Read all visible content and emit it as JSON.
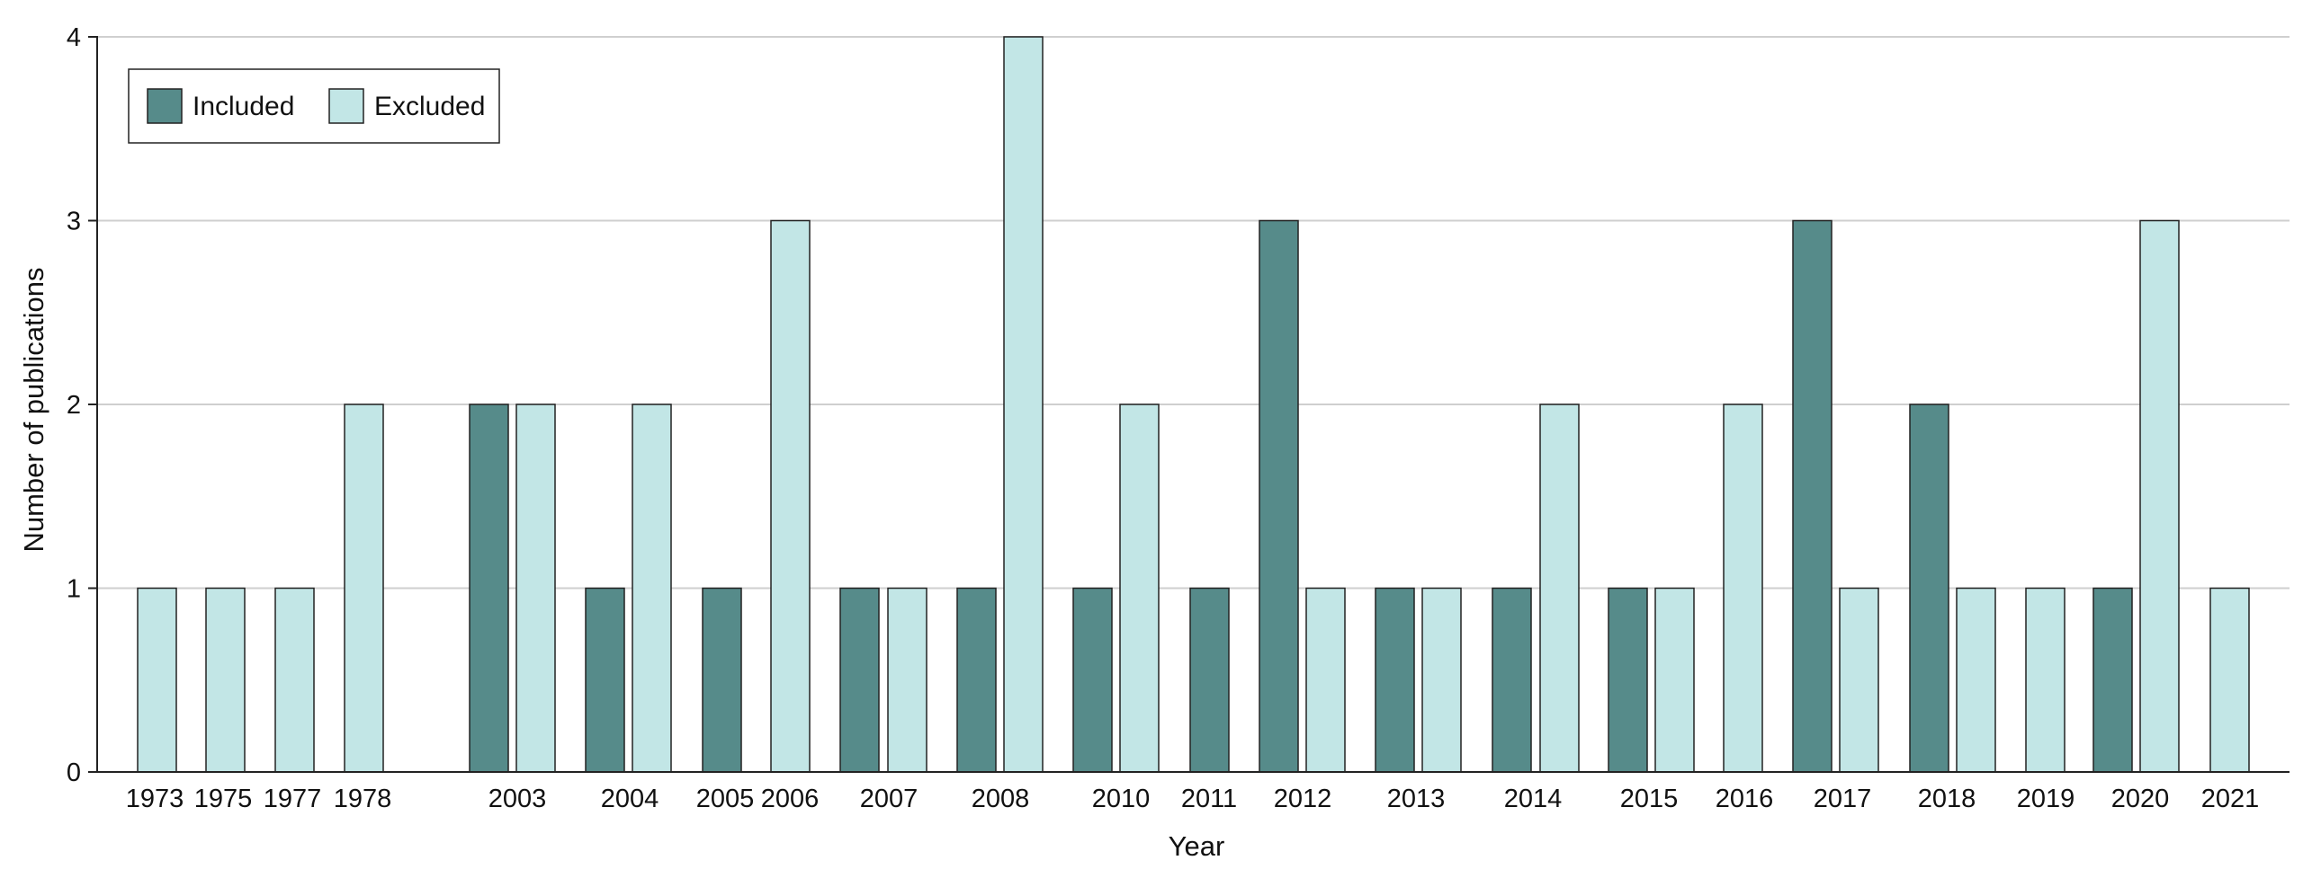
{
  "chart_data": {
    "type": "bar",
    "title": "",
    "xlabel": "Year",
    "ylabel": "Number of publications",
    "ylim": [
      0,
      4
    ],
    "yticks": [
      "0",
      "1",
      "2",
      "3",
      "4"
    ],
    "grid": "horizontal",
    "legend_position": "top-left",
    "categories": [
      "1973",
      "1975",
      "1977",
      "1978",
      "2003",
      "2004",
      "2005",
      "2006",
      "2007",
      "2008",
      "2010",
      "2011",
      "2012",
      "2013",
      "2014",
      "2015",
      "2016",
      "2017",
      "2018",
      "2019",
      "2020",
      "2021"
    ],
    "series": [
      {
        "name": "Included",
        "color": "#568b8a"
      },
      {
        "name": "Excluded",
        "color": "#c2e6e6"
      }
    ],
    "bars": [
      {
        "series": "Excluded",
        "value": 1
      },
      {
        "series": "Excluded",
        "value": 1
      },
      {
        "series": "Excluded",
        "value": 1
      },
      {
        "series": "Excluded",
        "value": 2
      },
      {
        "series": "Included",
        "value": 2
      },
      {
        "series": "Excluded",
        "value": 2
      },
      {
        "series": "Included",
        "value": 1
      },
      {
        "series": "Excluded",
        "value": 2
      },
      {
        "series": "Included",
        "value": 1
      },
      {
        "series": "Excluded",
        "value": 3
      },
      {
        "series": "Included",
        "value": 1
      },
      {
        "series": "Excluded",
        "value": 1
      },
      {
        "series": "Included",
        "value": 1
      },
      {
        "series": "Excluded",
        "value": 4
      },
      {
        "series": "Included",
        "value": 1
      },
      {
        "series": "Excluded",
        "value": 2
      },
      {
        "series": "Included",
        "value": 1
      },
      {
        "series": "Included",
        "value": 3
      },
      {
        "series": "Excluded",
        "value": 1
      },
      {
        "series": "Included",
        "value": 1
      },
      {
        "series": "Excluded",
        "value": 1
      },
      {
        "series": "Included",
        "value": 1
      },
      {
        "series": "Excluded",
        "value": 2
      },
      {
        "series": "Included",
        "value": 1
      },
      {
        "series": "Excluded",
        "value": 1
      },
      {
        "series": "Excluded",
        "value": 2
      },
      {
        "series": "Included",
        "value": 3
      },
      {
        "series": "Excluded",
        "value": 1
      },
      {
        "series": "Included",
        "value": 2
      },
      {
        "series": "Excluded",
        "value": 1
      },
      {
        "series": "Excluded",
        "value": 1
      },
      {
        "series": "Included",
        "value": 1
      },
      {
        "series": "Excluded",
        "value": 3
      },
      {
        "series": "Excluded",
        "value": 1
      }
    ]
  }
}
